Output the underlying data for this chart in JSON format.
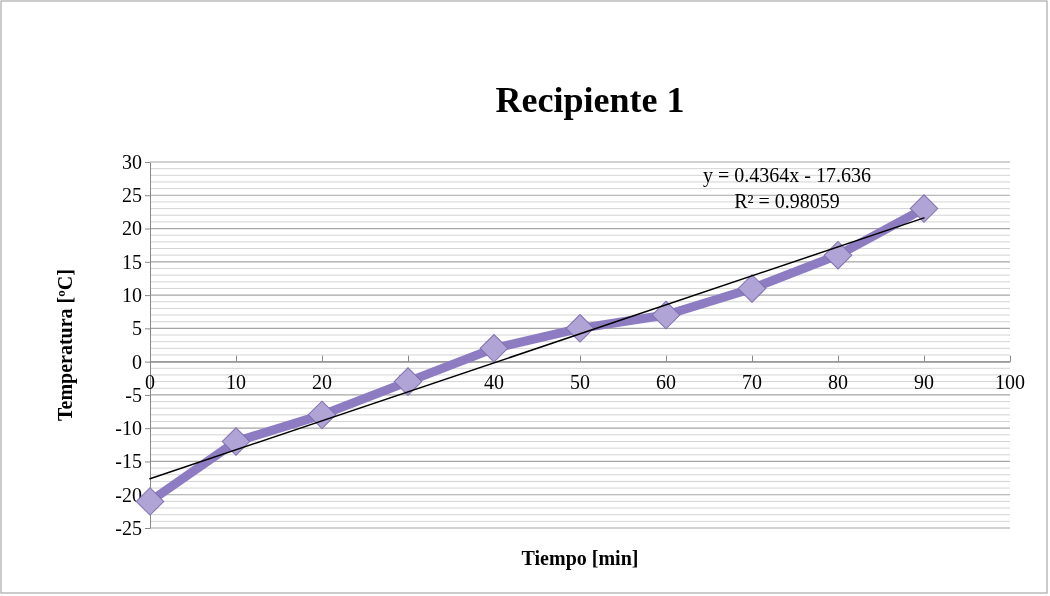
{
  "chart_data": {
    "type": "line",
    "title": "Recipiente 1",
    "xlabel": "Tiempo [min]",
    "ylabel": "Temperatura [ºC]",
    "x": [
      0,
      10,
      20,
      30,
      40,
      50,
      60,
      70,
      80,
      90
    ],
    "series": [
      {
        "color": "#8e7cc3",
        "values": [
          -21,
          -12,
          -8,
          -3,
          2,
          5,
          7,
          11,
          16,
          23
        ],
        "marker": "diamond"
      },
      {
        "type": "line",
        "color": "#000000",
        "x": [
          0,
          90
        ],
        "values": [
          -17.6,
          21.6
        ],
        "marker": "none"
      }
    ],
    "annotations": [
      "y = 0.4364x - 17.636",
      "R² = 0.98059"
    ],
    "xlim": [
      0,
      100
    ],
    "xticks": [
      0,
      10,
      20,
      30,
      40,
      50,
      60,
      70,
      80,
      90,
      100
    ],
    "ylim": [
      -25,
      30
    ],
    "yticks": [
      -25,
      -20,
      -15,
      -10,
      -5,
      0,
      5,
      10,
      15,
      20,
      25,
      30
    ],
    "grid": "y"
  }
}
